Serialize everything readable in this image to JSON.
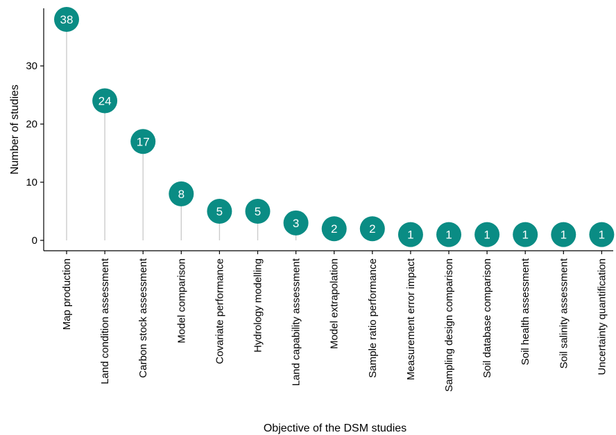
{
  "chart_data": {
    "type": "lollipop",
    "xlabel": "Objective of the DSM studies",
    "ylabel": "Number of studies",
    "ylim": [
      0,
      38
    ],
    "yticks": [
      0,
      10,
      20,
      30
    ],
    "grid": false,
    "legend": "none",
    "colors": {
      "point": "#0a8c84",
      "stem": "#cccccc",
      "axis": "#000000",
      "label": "#ffffff"
    },
    "categories": [
      "Map production",
      "Land condition assessment",
      "Carbon stock assessment",
      "Model comparison",
      "Covariate performance",
      "Hydrology modelling",
      "Land capability assessment",
      "Model extrapolation",
      "Sample ratio performance",
      "Measurement error impact",
      "Sampling design comparison",
      "Soil database comparison",
      "Soil health assessment",
      "Soil salinity assessment",
      "Uncertainty quantification"
    ],
    "values": [
      38,
      24,
      17,
      8,
      5,
      5,
      3,
      2,
      2,
      1,
      1,
      1,
      1,
      1,
      1
    ]
  }
}
